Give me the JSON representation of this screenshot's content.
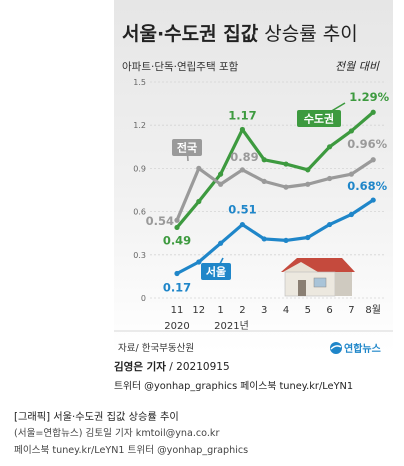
{
  "header": {
    "title_bold": "서울·수도권 집값",
    "title_light": " 상승률 추이",
    "subtitle": "아파트·단독·연립주택 포함",
    "unit_note": "전월 대비"
  },
  "chart_data": {
    "type": "line",
    "categories": [
      "11",
      "12",
      "1",
      "2",
      "3",
      "4",
      "5",
      "6",
      "7",
      "8월"
    ],
    "year_labels": [
      "2020",
      "2021년"
    ],
    "ylim": [
      0,
      1.5
    ],
    "yticks": [
      0,
      0.3,
      0.6,
      0.9,
      1.2,
      1.5
    ],
    "ytick_labels": [
      "0",
      "0.3",
      "0.6",
      "0.9",
      "1.2",
      "1.5"
    ],
    "series": [
      {
        "name": "수도권",
        "color": "#3d9a3f",
        "values": [
          0.49,
          0.67,
          0.86,
          1.17,
          0.96,
          0.93,
          0.89,
          1.05,
          1.16,
          1.29
        ]
      },
      {
        "name": "전국",
        "color": "#9a9a9a",
        "values": [
          0.54,
          0.9,
          0.79,
          0.89,
          0.81,
          0.77,
          0.79,
          0.83,
          0.86,
          0.96
        ]
      },
      {
        "name": "서울",
        "color": "#1f86c9",
        "values": [
          0.17,
          0.25,
          0.38,
          0.51,
          0.41,
          0.4,
          0.42,
          0.51,
          0.58,
          0.68
        ]
      }
    ],
    "data_labels": [
      {
        "series": 0,
        "index": 0,
        "text": "0.49"
      },
      {
        "series": 0,
        "index": 3,
        "text": "1.17"
      },
      {
        "series": 0,
        "index": 9,
        "text": "1.29%"
      },
      {
        "series": 1,
        "index": 0,
        "text": "0.54"
      },
      {
        "series": 1,
        "index": 3,
        "text": "0.89"
      },
      {
        "series": 1,
        "index": 9,
        "text": "0.96%"
      },
      {
        "series": 2,
        "index": 0,
        "text": "0.17"
      },
      {
        "series": 2,
        "index": 3,
        "text": "0.51"
      },
      {
        "series": 2,
        "index": 9,
        "text": "0.68%"
      }
    ],
    "grid": true
  },
  "source": "자료/ 한국부동산원",
  "logo": "연합뉴스",
  "credits": {
    "reporter": "김영은 기자",
    "date": " / 20210915",
    "social": "트위터 @yonhap_graphics  페이스북 tuney.kr/LeYN1"
  },
  "caption": {
    "line1": "[그래픽] 서울·수도권 집값 상승률 추이",
    "line2": "(서울=연합뉴스) 김토일 기자 kmtoil@yna.co.kr",
    "line3": "페이스북 tuney.kr/LeYN1 트위터 @yonhap_graphics"
  }
}
